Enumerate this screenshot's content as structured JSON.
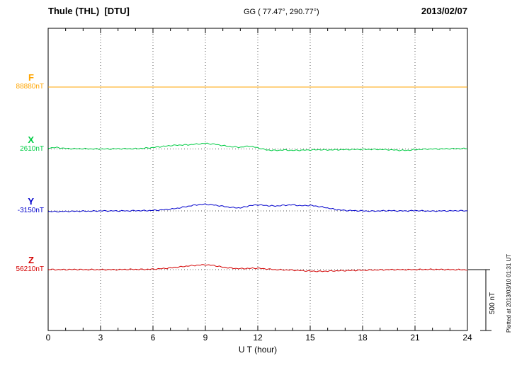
{
  "header": {
    "title": "Thule (THL)  [DTU]",
    "coords": "GG ( 77.47°, 290.77°)",
    "date": "2013/02/07"
  },
  "traces": [
    {
      "label": "F",
      "value": "88880nT",
      "color": "#FFA500"
    },
    {
      "label": "X",
      "value": "2610nT",
      "color": "#00CC44"
    },
    {
      "label": "Y",
      "value": "-3150nT",
      "color": "#0000CC"
    },
    {
      "label": "Z",
      "value": "56210nT",
      "color": "#D40000"
    }
  ],
  "axis": {
    "xlabel": "U T (hour)",
    "ticks": [
      0,
      3,
      6,
      9,
      12,
      15,
      18,
      21,
      24
    ]
  },
  "scale_bar": {
    "label": "500 nT",
    "nT": 500
  },
  "footer": {
    "plotted": "Plotted at 2013/03/10 01:31 UT"
  },
  "chart_data": {
    "type": "line",
    "title": "Thule (THL) [DTU] magnetogram 2013/02/07",
    "xlabel": "U T (hour)",
    "ylabel": "",
    "xlim": [
      0,
      24
    ],
    "grid": "dotted vertical every 3 h, dotted baseline per trace",
    "legend_position": "left baseline labels",
    "scale_nT": 500,
    "x_hours": [
      0,
      0.5,
      1,
      1.5,
      2,
      2.5,
      3,
      3.5,
      4,
      4.5,
      5,
      5.5,
      6,
      6.5,
      7,
      7.5,
      8,
      8.5,
      9,
      9.5,
      10,
      10.5,
      11,
      11.5,
      12,
      12.5,
      13,
      13.5,
      14,
      14.5,
      15,
      15.5,
      16,
      16.5,
      17,
      17.5,
      18,
      18.5,
      19,
      19.5,
      20,
      20.5,
      21,
      21.5,
      22,
      22.5,
      23,
      23.5,
      24
    ],
    "series": [
      {
        "name": "F",
        "baseline_nT": 88880,
        "color": "#FFA500",
        "offsets_nT": [
          0,
          0,
          0,
          0,
          0,
          0,
          0,
          0,
          0,
          0,
          0,
          0,
          0,
          0,
          0,
          0,
          0,
          0,
          0,
          0,
          0,
          0,
          0,
          0,
          0,
          0,
          0,
          0,
          0,
          0,
          0,
          0,
          0,
          0,
          0,
          0,
          0,
          0,
          0,
          0,
          0,
          0,
          0,
          0,
          0,
          0,
          0,
          0,
          0
        ]
      },
      {
        "name": "X",
        "baseline_nT": 2610,
        "color": "#00CC44",
        "offsets_nT": [
          8,
          12,
          4,
          2,
          2,
          0,
          0,
          0,
          2,
          2,
          2,
          6,
          12,
          20,
          28,
          32,
          34,
          40,
          46,
          40,
          28,
          18,
          14,
          24,
          10,
          -8,
          -12,
          -8,
          -12,
          -10,
          -8,
          -6,
          -8,
          -6,
          -5,
          -4,
          -3,
          -3,
          -4,
          -6,
          -10,
          -12,
          -5,
          -2,
          0,
          0,
          2,
          3,
          4
        ]
      },
      {
        "name": "Y",
        "baseline_nT": -3150,
        "color": "#0000CC",
        "offsets_nT": [
          -5,
          -6,
          -4,
          -3,
          -2,
          -2,
          0,
          0,
          0,
          0,
          2,
          2,
          4,
          8,
          14,
          24,
          38,
          50,
          55,
          48,
          38,
          28,
          24,
          42,
          50,
          44,
          40,
          46,
          50,
          42,
          46,
          36,
          24,
          10,
          4,
          2,
          0,
          -2,
          0,
          2,
          0,
          0,
          2,
          0,
          -2,
          0,
          0,
          2,
          0
        ]
      },
      {
        "name": "Z",
        "baseline_nT": 56210,
        "color": "#D40000",
        "offsets_nT": [
          2,
          0,
          0,
          2,
          0,
          0,
          0,
          0,
          0,
          2,
          2,
          2,
          4,
          8,
          14,
          22,
          30,
          36,
          40,
          34,
          20,
          12,
          8,
          10,
          12,
          6,
          0,
          -2,
          -4,
          -8,
          -12,
          -14,
          -12,
          -10,
          -8,
          -6,
          -5,
          -3,
          -2,
          0,
          0,
          0,
          0,
          2,
          2,
          2,
          0,
          0,
          -2
        ]
      }
    ]
  }
}
